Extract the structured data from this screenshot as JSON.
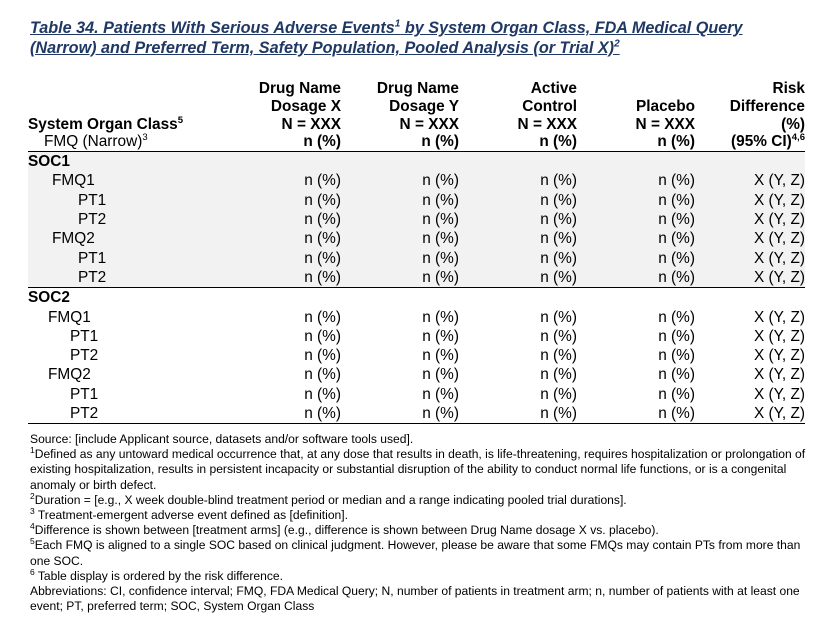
{
  "title": {
    "prefix": "Table 34. Patients With Serious Adverse Events",
    "sup1": "1",
    "middle": " by System Organ Class, FDA Medical Query",
    "line2": "(Narrow) and Preferred Term, Safety Population, Pooled Analysis (or Trial X)",
    "sup2": "2"
  },
  "header": {
    "label_main": "System Organ Class",
    "label_main_sup": "5",
    "label_sub": "FMQ (Narrow)",
    "label_sub_sup": "3",
    "columns": [
      {
        "l1": "Drug Name",
        "l2": "Dosage X",
        "l3": "N = XXX",
        "l4": "n (%)"
      },
      {
        "l1": "Drug Name",
        "l2": "Dosage Y",
        "l3": "N = XXX",
        "l4": "n (%)"
      },
      {
        "l1": "Active",
        "l2": "Control",
        "l3": "N = XXX",
        "l4": "n (%)"
      },
      {
        "l1": "",
        "l2": "Placebo",
        "l3": "N = XXX",
        "l4": "n (%)"
      }
    ],
    "risk": {
      "l1": "Risk",
      "l2": "Difference",
      "l3": "(%)",
      "l4": "(95% CI)",
      "l4_sup": "4,6"
    }
  },
  "groups": [
    {
      "soc": "SOC1",
      "rows": [
        {
          "label": "FMQ1",
          "c1": "n (%)",
          "c2": "n (%)",
          "c3": "n (%)",
          "c4": "n (%)",
          "risk": "X (Y, Z)"
        },
        {
          "label": "PT1",
          "c1": "n (%)",
          "c2": "n (%)",
          "c3": "n (%)",
          "c4": "n (%)",
          "risk": "X (Y, Z)"
        },
        {
          "label": "PT2",
          "c1": "n (%)",
          "c2": "n (%)",
          "c3": "n (%)",
          "c4": "n (%)",
          "risk": "X (Y, Z)"
        },
        {
          "label": "FMQ2",
          "c1": "n (%)",
          "c2": "n (%)",
          "c3": "n (%)",
          "c4": "n (%)",
          "risk": "X (Y, Z)"
        },
        {
          "label": "PT1",
          "c1": "n (%)",
          "c2": "n (%)",
          "c3": "n (%)",
          "c4": "n (%)",
          "risk": "X (Y, Z)"
        },
        {
          "label": "PT2",
          "c1": "n (%)",
          "c2": "n (%)",
          "c3": "n (%)",
          "c4": "n (%)",
          "risk": "X (Y, Z)"
        }
      ]
    },
    {
      "soc": "SOC2",
      "rows": [
        {
          "label": "FMQ1",
          "c1": "n (%)",
          "c2": "n (%)",
          "c3": "n (%)",
          "c4": "n (%)",
          "risk": "X (Y, Z)"
        },
        {
          "label": "PT1",
          "c1": "n (%)",
          "c2": "n (%)",
          "c3": "n (%)",
          "c4": "n (%)",
          "risk": "X (Y, Z)"
        },
        {
          "label": "PT2",
          "c1": "n (%)",
          "c2": "n (%)",
          "c3": "n (%)",
          "c4": "n (%)",
          "risk": "X (Y, Z)"
        },
        {
          "label": "FMQ2",
          "c1": "n (%)",
          "c2": "n (%)",
          "c3": "n (%)",
          "c4": "n (%)",
          "risk": "X (Y, Z)"
        },
        {
          "label": "PT1",
          "c1": "n (%)",
          "c2": "n (%)",
          "c3": "n (%)",
          "c4": "n (%)",
          "risk": "X (Y, Z)"
        },
        {
          "label": "PT2",
          "c1": "n (%)",
          "c2": "n (%)",
          "c3": "n (%)",
          "c4": "n (%)",
          "risk": "X (Y, Z)"
        }
      ]
    }
  ],
  "notes": {
    "source": "Source: [include Applicant source, datasets and/or software tools used].",
    "fn1_mark": "1",
    "fn1": "Defined as any untoward medical occurrence that, at any dose that results in death, is life-threatening, requires hospitalization or prolongation of existing hospitalization, results in persistent incapacity or substantial disruption of the ability to conduct normal life functions, or is a congenital anomaly or birth defect.",
    "fn2_mark": "2",
    "fn2": "Duration = [e.g., X week double-blind treatment period or median and a range indicating pooled trial durations].",
    "fn3_mark": "3",
    "fn3": " Treatment-emergent adverse event defined as [definition].",
    "fn4_mark": "4",
    "fn4": "Difference is shown between [treatment arms] (e.g., difference is shown between Drug Name dosage X vs. placebo).",
    "fn5_mark": "5",
    "fn5": "Each FMQ is aligned to a single SOC based on clinical judgment. However, please be aware that some FMQs may contain PTs from more than one SOC.",
    "fn6_mark": "6",
    "fn6": " Table display is ordered by the risk difference.",
    "abbrev": "Abbreviations: CI, confidence interval; FMQ, FDA Medical Query; N, number of patients in treatment arm; n, number of patients with at least one event; PT, preferred term; SOC, System Organ Class"
  }
}
